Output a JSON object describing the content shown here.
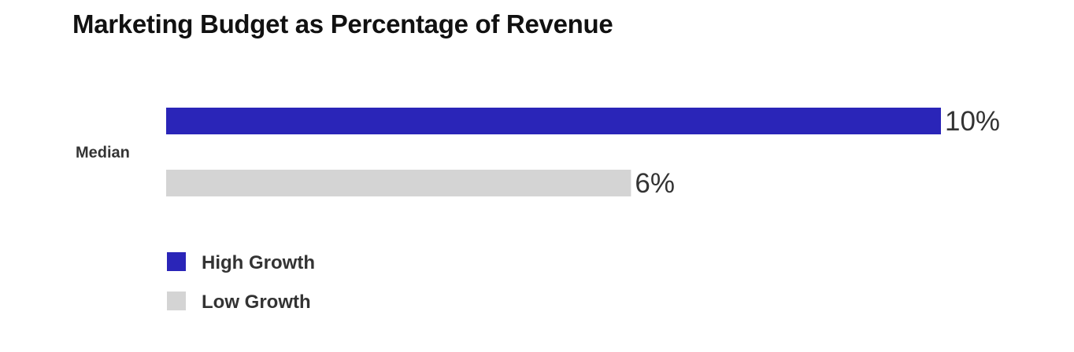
{
  "chart_data": {
    "type": "bar",
    "orientation": "horizontal",
    "title": "Marketing Budget as Percentage of Revenue",
    "categories": [
      "Median"
    ],
    "series": [
      {
        "name": "High Growth",
        "values": [
          10
        ],
        "labels": [
          "10%"
        ],
        "color": "#2a25b8"
      },
      {
        "name": "Low Growth",
        "values": [
          6
        ],
        "labels": [
          "6%"
        ],
        "color": "#d4d4d4"
      }
    ],
    "xlim": [
      0,
      10
    ],
    "grid": false,
    "legend_position": "bottom-left"
  }
}
